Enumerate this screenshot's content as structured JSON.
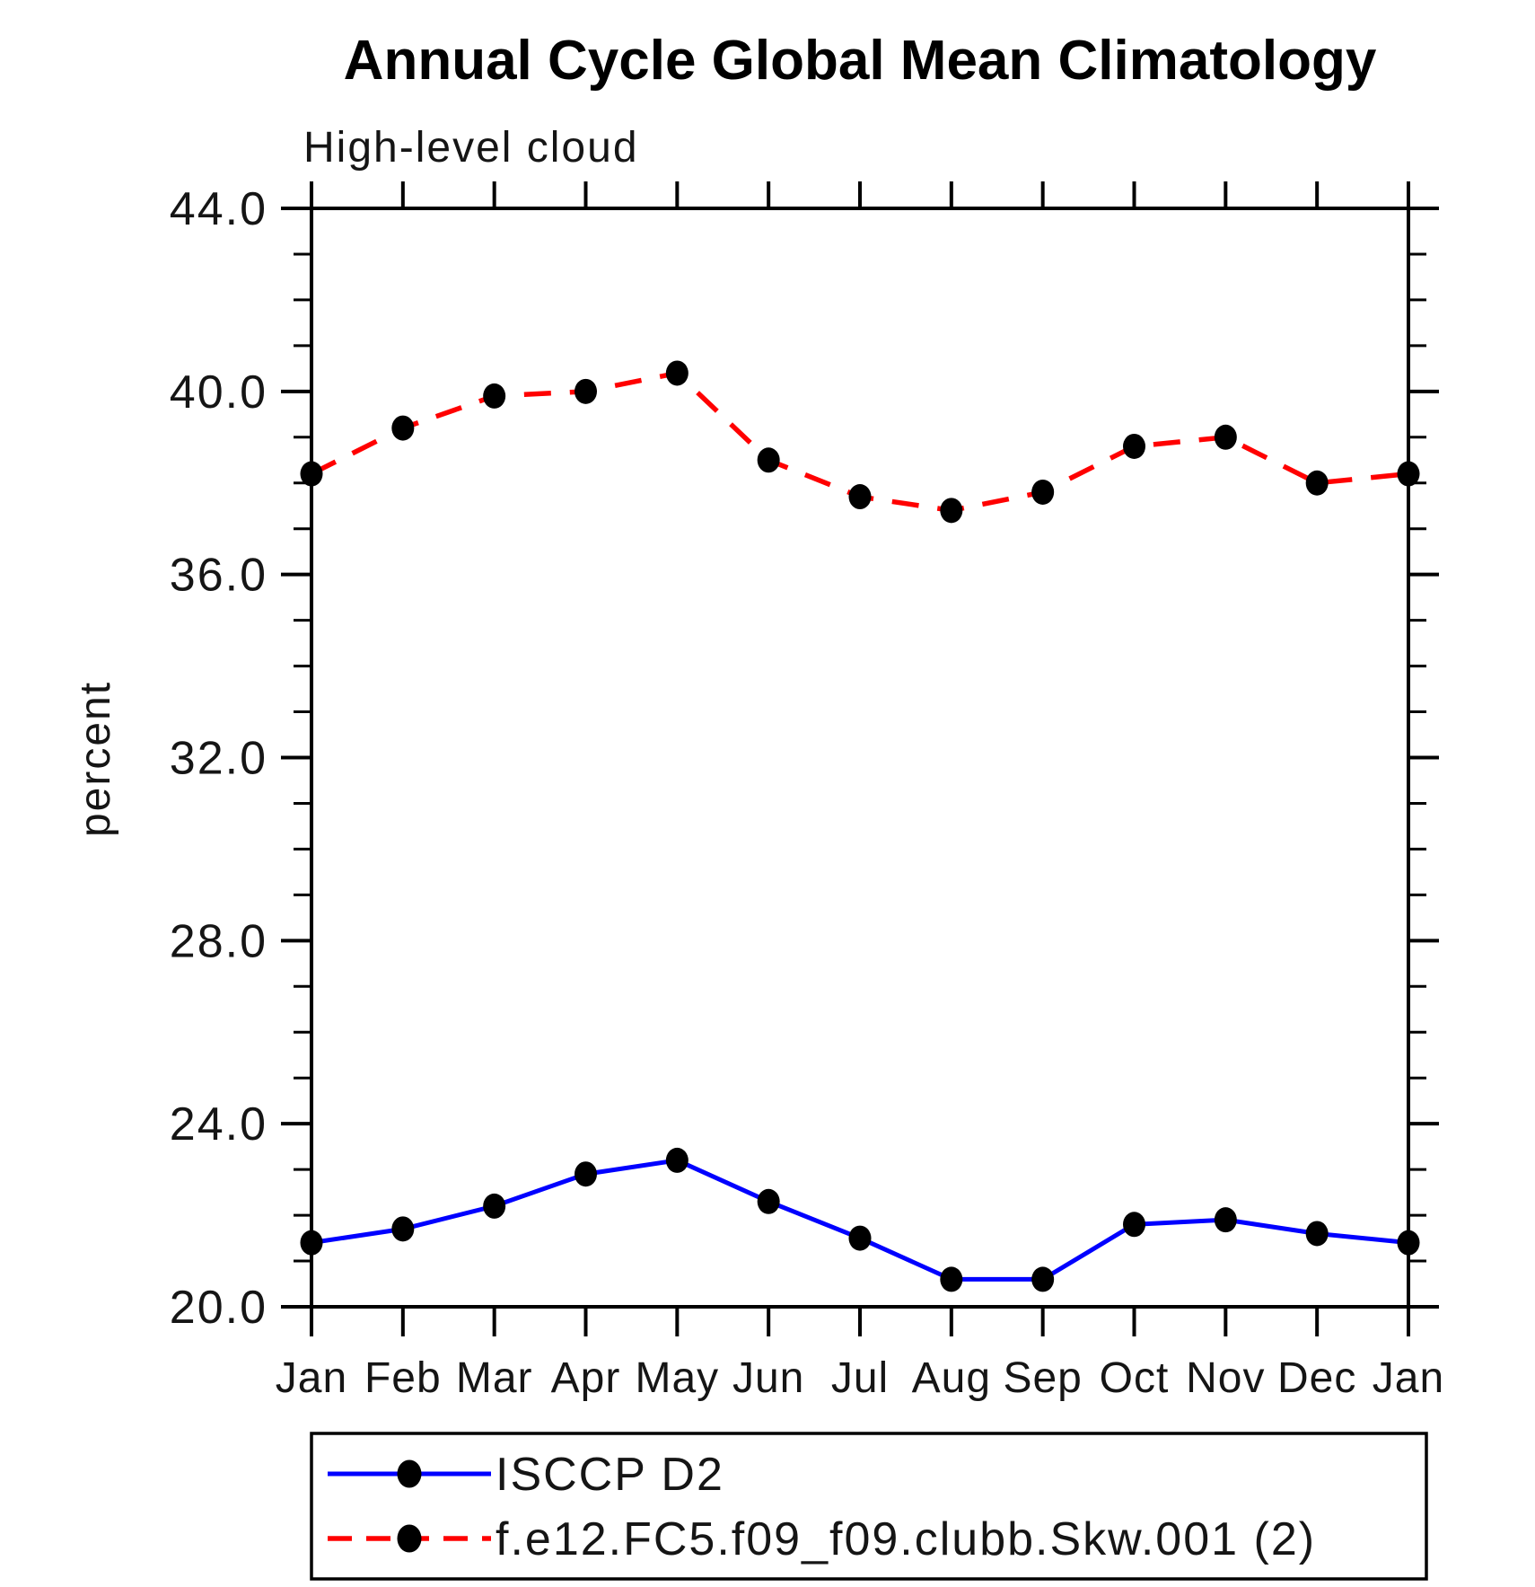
{
  "chart_data": {
    "type": "line",
    "title": "Annual Cycle Global Mean Climatology",
    "subtitle": "High-level cloud",
    "ylabel": "percent",
    "categories": [
      "Jan",
      "Feb",
      "Mar",
      "Apr",
      "May",
      "Jun",
      "Jul",
      "Aug",
      "Sep",
      "Oct",
      "Nov",
      "Dec",
      "Jan"
    ],
    "ylim": [
      20.0,
      44.0
    ],
    "ytick_major_step": 4.0,
    "ytick_minor_step": 1.0,
    "ytick_labels": [
      "20.0",
      "24.0",
      "28.0",
      "32.0",
      "36.0",
      "40.0",
      "44.0"
    ],
    "grid": false,
    "axis_color": "#000000",
    "marker": {
      "shape": "filled-circle",
      "color": "#000000"
    },
    "legend_position": "bottom-left",
    "series": [
      {
        "name": "ISCCP D2",
        "color": "#0000ff",
        "line_style": "solid",
        "values": [
          21.4,
          21.7,
          22.2,
          22.9,
          23.2,
          22.3,
          21.5,
          20.6,
          20.6,
          21.8,
          21.9,
          21.6,
          21.4
        ]
      },
      {
        "name": "f.e12.FC5.f09_f09.clubb.Skw.001 (2)",
        "color": "#ff0000",
        "line_style": "dashed",
        "values": [
          38.2,
          39.2,
          39.9,
          40.0,
          40.4,
          38.5,
          37.7,
          37.4,
          37.8,
          38.8,
          39.0,
          38.0,
          38.2
        ]
      }
    ]
  }
}
